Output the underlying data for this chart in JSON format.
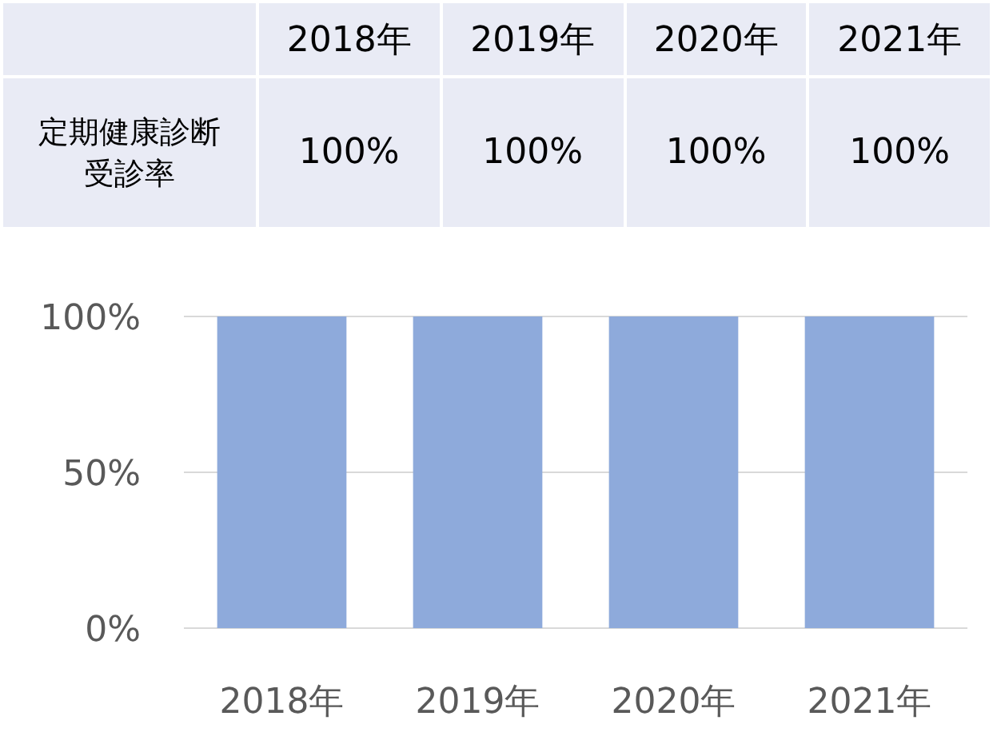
{
  "chart_data": {
    "type": "bar",
    "categories": [
      "2018年",
      "2019年",
      "2020年",
      "2021年"
    ],
    "series": [
      {
        "name": "定期健康診断受診率",
        "color": "#8eaadb",
        "values": [
          100,
          100,
          100,
          100
        ],
        "value_labels": [
          "100%",
          "100%",
          "100%",
          "100%"
        ]
      }
    ],
    "ylim": [
      0,
      100
    ],
    "yticks": [
      {
        "value": 0,
        "label": "0%"
      },
      {
        "value": 50,
        "label": "50%"
      },
      {
        "value": 100,
        "label": "100%"
      }
    ],
    "grid": "y"
  }
}
